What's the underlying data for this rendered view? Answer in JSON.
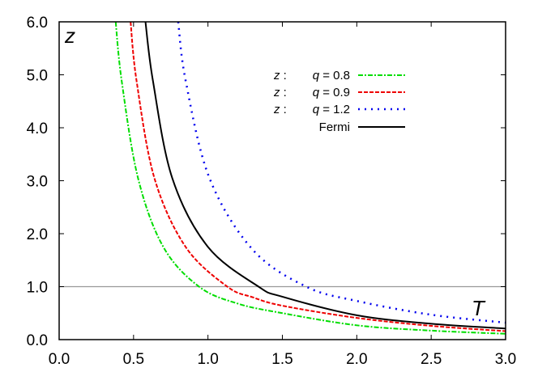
{
  "chart_data": {
    "type": "line",
    "title": "",
    "xlabel": "T",
    "ylabel": "z",
    "xlim": [
      0.0,
      3.0
    ],
    "ylim": [
      0.0,
      6.0
    ],
    "xticks": [
      "0.0",
      "0.5",
      "1.0",
      "1.5",
      "2.0",
      "2.5",
      "3.0"
    ],
    "yticks": [
      "0.0",
      "1.0",
      "2.0",
      "3.0",
      "4.0",
      "5.0",
      "6.0"
    ],
    "grid": false,
    "reference_line": {
      "y": 1.0,
      "color": "#999999"
    },
    "legend_position": "upper right",
    "series": [
      {
        "name": "z :   q = 0.8",
        "legend_prefix": "z :",
        "legend_label": "q = 0.8",
        "color": "#00dd00",
        "dash": "dash-dot",
        "x": [
          0.38,
          0.42,
          0.53,
          0.7,
          0.94,
          1.2,
          1.5,
          2.0,
          2.5,
          3.0
        ],
        "y": [
          6.0,
          4.89,
          3.05,
          1.75,
          1.0,
          0.68,
          0.5,
          0.27,
          0.17,
          0.11
        ]
      },
      {
        "name": "z :   q = 0.9",
        "legend_prefix": "z :",
        "legend_label": "q = 0.9",
        "color": "#ee0000",
        "dash": "dashed",
        "x": [
          0.48,
          0.52,
          0.64,
          0.85,
          1.13,
          1.3,
          1.5,
          2.0,
          2.5,
          3.0
        ],
        "y": [
          6.0,
          4.89,
          3.05,
          1.75,
          1.0,
          0.8,
          0.64,
          0.41,
          0.26,
          0.16
        ]
      },
      {
        "name": "z :   q = 1.2",
        "legend_prefix": "z :",
        "legend_label": "q = 1.2",
        "color": "#0000ee",
        "dash": "dotted",
        "x": [
          0.8,
          0.85,
          1.01,
          1.3,
          1.66,
          2.0,
          2.5,
          3.0
        ],
        "y": [
          6.0,
          4.89,
          3.05,
          1.7,
          1.0,
          0.73,
          0.47,
          0.32
        ]
      },
      {
        "name": "Fermi",
        "legend_prefix": "",
        "legend_label": "Fermi",
        "color": "#000000",
        "dash": "solid",
        "x": [
          0.58,
          0.63,
          0.76,
          1.0,
          1.34,
          1.5,
          2.0,
          2.5,
          3.0
        ],
        "y": [
          6.0,
          4.89,
          3.05,
          1.75,
          1.0,
          0.81,
          0.46,
          0.3,
          0.21
        ]
      }
    ]
  }
}
